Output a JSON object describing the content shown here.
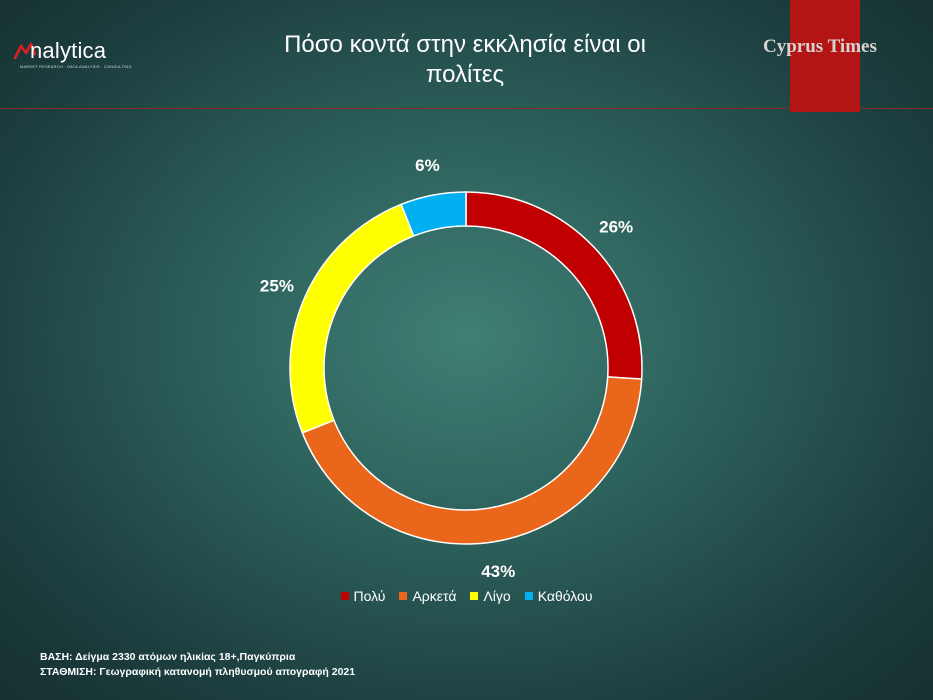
{
  "header": {
    "logo_text": "nalytica",
    "logo_subtext": "MARKET RESEARCH · DATA ANALYSIS · CONSULTING",
    "title_line1": "Πόσο κοντά στην εκκλησία είναι οι",
    "title_line2": "πολίτες",
    "brand": "Cyprus Times"
  },
  "colors": {
    "accent_red": "#b31414",
    "header_line": "#8a2a24"
  },
  "chart_data": {
    "type": "pie",
    "variant": "donut",
    "categories": [
      "Πολύ",
      "Αρκετά",
      "Λίγο",
      "Καθόλου"
    ],
    "values": [
      26,
      43,
      25,
      6
    ],
    "labels": [
      "26%",
      "43%",
      "25%",
      "6%"
    ],
    "colors": [
      "#c00000",
      "#e9661a",
      "#ffff00",
      "#00b0f0"
    ],
    "legend_position": "bottom"
  },
  "footnote": {
    "line1": "ΒΑΣΗ: Δείγμα 2330 ατόμων ηλικίας 18+,Παγκύπρια",
    "line2": "ΣΤΑΘΜΙΣΗ: Γεωγραφική κατανομή πληθυσμού απογραφή 2021"
  }
}
